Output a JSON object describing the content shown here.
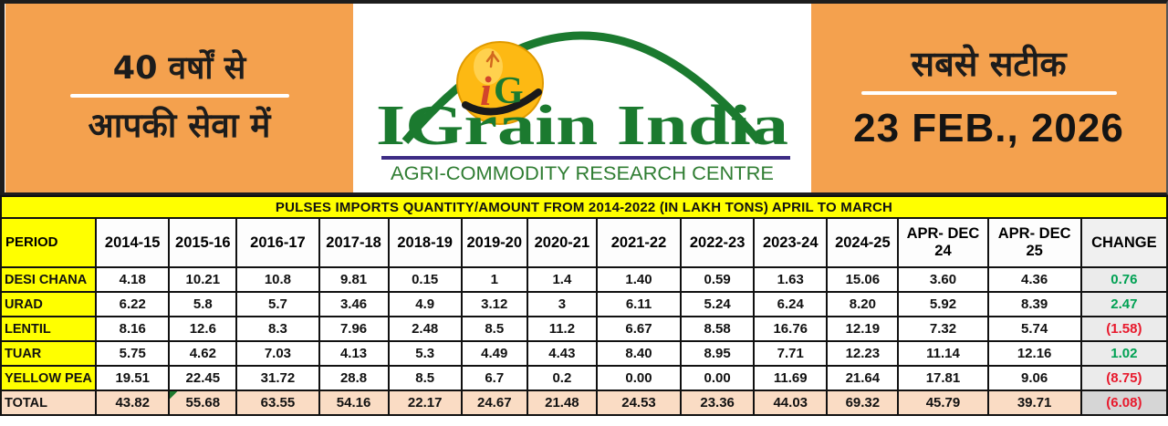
{
  "banner": {
    "left_box": {
      "line1": "40 वर्षों से",
      "line2": "आपकी सेवा में"
    },
    "logo": {
      "monogram_i": "i",
      "monogram_g": "G",
      "name": "IGrain India",
      "tagline": "AGRI-COMMODITY RESEARCH CENTRE"
    },
    "right_box": {
      "line1": "सबसे सटीक",
      "date": "23 FEB., 2026"
    }
  },
  "chart_data": {
    "type": "table",
    "title": "PULSES IMPORTS QUANTITY/AMOUNT FROM 2014-2022 (IN LAKH TONS) APRIL TO MARCH",
    "unit": "LAKH TONS",
    "columns": [
      "PERIOD",
      "2014-15",
      "2015-16",
      "2016-17",
      "2017-18",
      "2018-19",
      "2019-20",
      "2020-21",
      "2021-22",
      "2022-23",
      "2023-24",
      "2024-25",
      "APR- DEC 24",
      "APR- DEC 25",
      "CHANGE"
    ],
    "rows": [
      {
        "label": "DESI CHANA",
        "values": [
          "4.18",
          "10.21",
          "10.8",
          "9.81",
          "0.15",
          "1",
          "1.4",
          "1.40",
          "0.59",
          "1.63",
          "15.06",
          "3.60",
          "4.36"
        ],
        "change": "0.76",
        "change_negative": false,
        "is_total": false
      },
      {
        "label": "URAD",
        "values": [
          "6.22",
          "5.8",
          "5.7",
          "3.46",
          "4.9",
          "3.12",
          "3",
          "6.11",
          "5.24",
          "6.24",
          "8.20",
          "5.92",
          "8.39"
        ],
        "change": "2.47",
        "change_negative": false,
        "is_total": false
      },
      {
        "label": "LENTIL",
        "values": [
          "8.16",
          "12.6",
          "8.3",
          "7.96",
          "2.48",
          "8.5",
          "11.2",
          "6.67",
          "8.58",
          "16.76",
          "12.19",
          "7.32",
          "5.74"
        ],
        "change": "(1.58)",
        "change_negative": true,
        "is_total": false
      },
      {
        "label": "TUAR",
        "values": [
          "5.75",
          "4.62",
          "7.03",
          "4.13",
          "5.3",
          "4.49",
          "4.43",
          "8.40",
          "8.95",
          "7.71",
          "12.23",
          "11.14",
          "12.16"
        ],
        "change": "1.02",
        "change_negative": false,
        "is_total": false
      },
      {
        "label": "YELLOW PEA",
        "values": [
          "19.51",
          "22.45",
          "31.72",
          "28.8",
          "8.5",
          "6.7",
          "0.2",
          "0.00",
          "0.00",
          "11.69",
          "21.64",
          "17.81",
          "9.06"
        ],
        "change": "(8.75)",
        "change_negative": true,
        "is_total": false
      },
      {
        "label": "TOTAL",
        "values": [
          "43.82",
          "55.68",
          "63.55",
          "54.16",
          "22.17",
          "24.67",
          "21.48",
          "24.53",
          "23.36",
          "44.03",
          "69.32",
          "45.79",
          "39.71"
        ],
        "change": "(6.08)",
        "change_negative": true,
        "is_total": true
      }
    ],
    "corner_marker": {
      "row_index": 5,
      "col_index": 1
    }
  },
  "colors": {
    "accent_orange": "#F4A14E",
    "header_yellow": "#FFFF00",
    "total_row_peach": "#FADCC4",
    "change_column_grey": "#EBEBEB",
    "change_positive_green": "#00A153",
    "change_negative_red": "#E8192C",
    "brand_green": "#1B7A2F",
    "logo_oval_yellow": "#FDB913",
    "underline_purple": "#3D2C85"
  }
}
